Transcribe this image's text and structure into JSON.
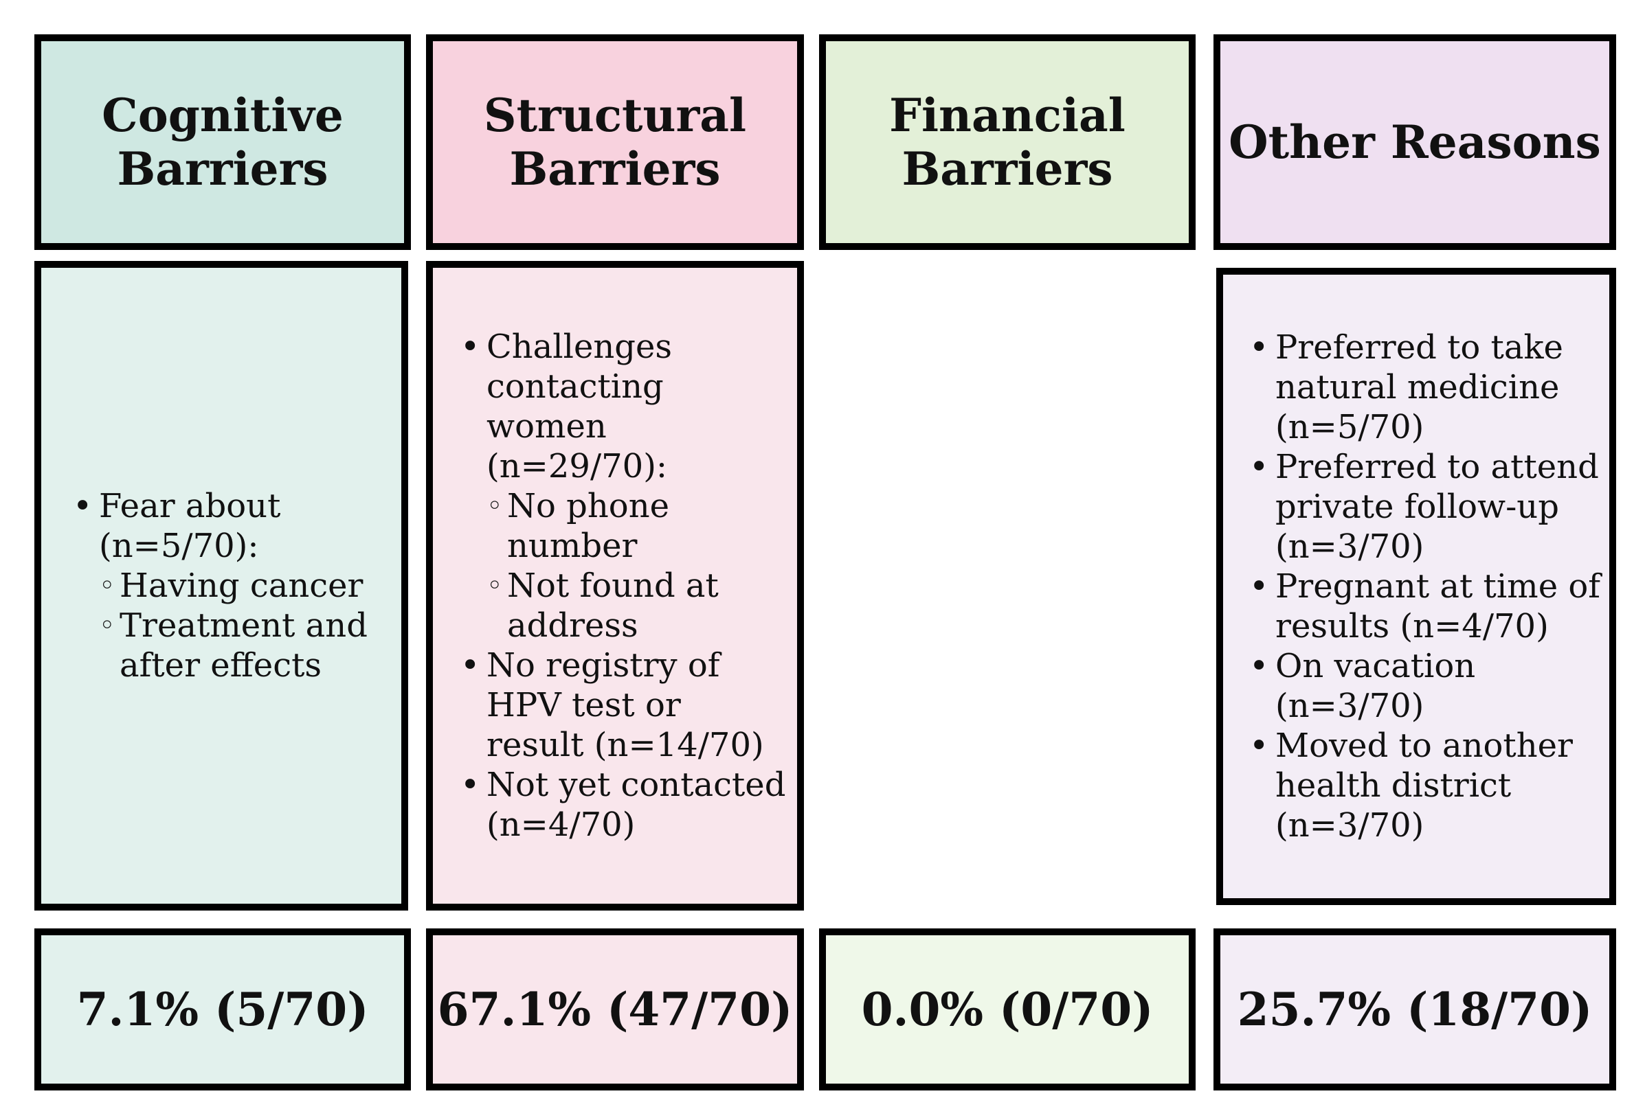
{
  "colors": {
    "border": "#000000",
    "cognitive_header": "#cfe8e2",
    "cognitive_light": "#e2f1ed",
    "structural_header": "#f8d2de",
    "structural_light": "#f9e6ec",
    "financial_header": "#e3f0d8",
    "financial_light": "#eff8e9",
    "other_header": "#efe0f1",
    "other_light": "#f3edf6"
  },
  "columns": [
    {
      "title": "Cognitive\nBarriers",
      "items": [
        {
          "text": "Fear about (n=5/70):",
          "sub": [
            "Having cancer",
            "Treatment and after effects"
          ]
        }
      ],
      "total": "7.1% (5/70)"
    },
    {
      "title": "Structural\nBarriers",
      "items": [
        {
          "text": "Challenges contacting women (n=29/70):",
          "sub": [
            "No phone number",
            "Not found at address"
          ]
        },
        {
          "text": "No registry of HPV test or result (n=14/70)"
        },
        {
          "text": "Not yet contacted (n=4/70)"
        }
      ],
      "total": "67.1% (47/70)"
    },
    {
      "title": "Financial\nBarriers",
      "items": [],
      "total": "0.0% (0/70)"
    },
    {
      "title": "Other Reasons",
      "items": [
        {
          "text": "Preferred to take natural medicine (n=5/70)"
        },
        {
          "text": "Preferred to attend private follow-up (n=3/70)"
        },
        {
          "text": "Pregnant at time of results (n=4/70)"
        },
        {
          "text": "On vacation (n=3/70)"
        },
        {
          "text": "Moved to another health district (n=3/70)"
        }
      ],
      "total": "25.7% (18/70)"
    }
  ]
}
